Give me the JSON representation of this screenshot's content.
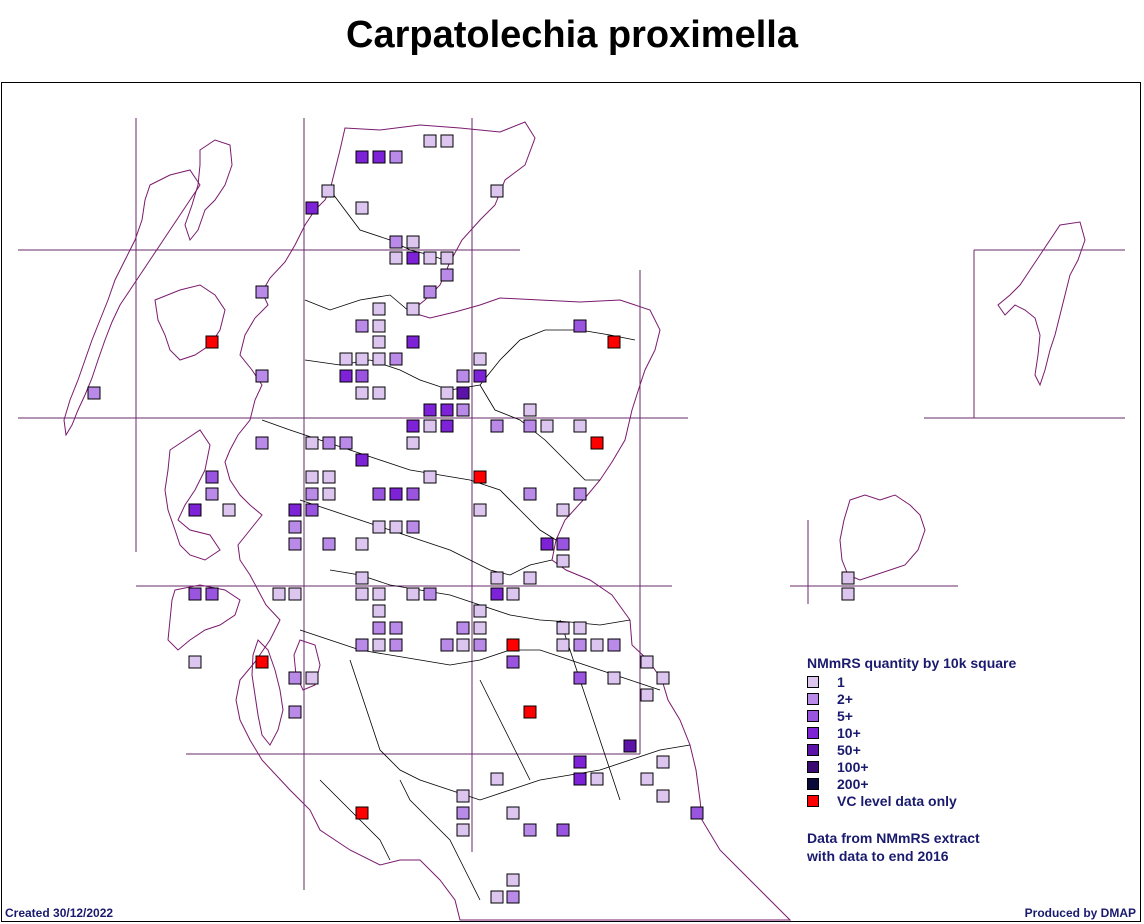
{
  "title": "Carpatolechia proximella",
  "legend": {
    "title": "NMmRS quantity by 10k square",
    "items": [
      {
        "label": "1",
        "color": "#dcc6f0"
      },
      {
        "label": "2+",
        "color": "#b98ae8"
      },
      {
        "label": "5+",
        "color": "#9a55e0"
      },
      {
        "label": "10+",
        "color": "#7d22d6"
      },
      {
        "label": "50+",
        "color": "#5c13a8"
      },
      {
        "label": "100+",
        "color": "#3a0a72"
      },
      {
        "label": "200+",
        "color": "#0a0a3a"
      },
      {
        "label": "VC level data only",
        "color": "#ff0000"
      }
    ],
    "source_line1": "Data from NMmRS extract",
    "source_line2": "with data to end 2016"
  },
  "footer": {
    "created": "Created 30/12/2022",
    "produced": "Produced by DMAP"
  },
  "colors": {
    "coast": "#7a1a6e",
    "grid": "#6a2a6a",
    "boundary": "#000000"
  }
}
